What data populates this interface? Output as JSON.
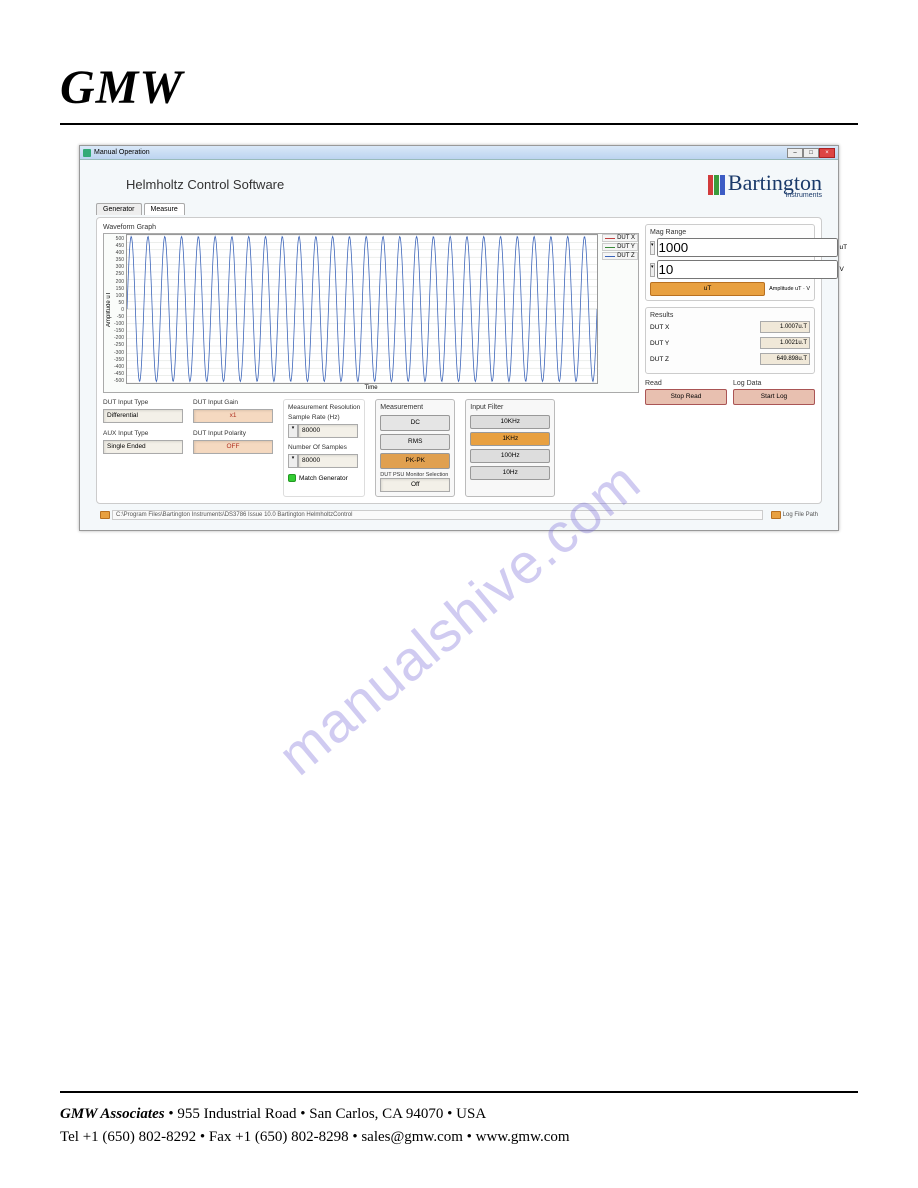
{
  "page": {
    "logo_text": "GMW",
    "watermark": "manualshive.com",
    "footer_line1_bold": "GMW Associates",
    "footer_line1_rest": "  •  955 Industrial Road  •  San Carlos, CA 94070  •  USA",
    "footer_line2": "Tel +1 (650) 802-8292  •  Fax +1 (650) 802-8298  •  sales@gmw.com  •  www.gmw.com"
  },
  "window": {
    "title": "Manual Operation",
    "app_title": "Helmholtz Control Software",
    "brand_text": "Bartington",
    "brand_sub": "Instruments",
    "brand_bar_colors": [
      "#d23c3c",
      "#3c9c3c",
      "#3c5cc4"
    ]
  },
  "tabs": [
    {
      "label": "Generator",
      "active": false
    },
    {
      "label": "Measure",
      "active": true
    }
  ],
  "graph": {
    "title": "Waveform Graph",
    "y_label": "Amplitude uT",
    "x_label": "Time",
    "y_ticks": [
      "500",
      "450",
      "400",
      "350",
      "300",
      "250",
      "200",
      "150",
      "100",
      "50",
      "0",
      "-50",
      "-100",
      "-150",
      "-200",
      "-250",
      "-300",
      "-350",
      "-400",
      "-450",
      "-500"
    ],
    "line_color": "#3a63b8",
    "grid_color": "#d8dcd8",
    "bg_color": "#ffffff",
    "n_cycles": 28,
    "ylim": [
      -500,
      500
    ],
    "legend": [
      {
        "label": "DUT X",
        "color": "#c04040"
      },
      {
        "label": "DUT Y",
        "color": "#3a8a3a"
      },
      {
        "label": "DUT Z",
        "color": "#3a63b8"
      }
    ]
  },
  "dut_input": {
    "label": "DUT Input Type",
    "value": "Differential"
  },
  "aux_input": {
    "label": "AUX Input Type",
    "value": "Single Ended"
  },
  "dut_gain": {
    "label": "DUT Input Gain",
    "value": "x1"
  },
  "dut_polarity": {
    "label": "DUT Input Polarity",
    "value": "OFF"
  },
  "meas_res": {
    "section": "Measurement Resolution",
    "sample_rate_label": "Sample Rate (Hz)",
    "sample_rate_value": "80000",
    "num_samples_label": "Number Of Samples",
    "num_samples_value": "80000",
    "match_gen_label": "Match Generator"
  },
  "measurement": {
    "label": "Measurement",
    "buttons": [
      {
        "label": "DC",
        "active": false
      },
      {
        "label": "RMS",
        "active": false
      },
      {
        "label": "PK-PK",
        "active": true
      }
    ],
    "psu_label": "DUT PSU Monitor Selection",
    "psu_value": "Off"
  },
  "mag_range": {
    "label": "Mag Range",
    "field1_value": "1000",
    "field1_unit": "uT",
    "field2_value": "10",
    "field2_unit": "V",
    "btn_label": "uT",
    "amp_label": "Amplitude uT · V"
  },
  "results": {
    "label": "Results",
    "rows": [
      {
        "name": "DUT X",
        "value": "1.0007u.T"
      },
      {
        "name": "DUT Y",
        "value": "1.0021u.T"
      },
      {
        "name": "DUT Z",
        "value": "649.898u.T"
      }
    ]
  },
  "read": {
    "label": "Read",
    "btn": "Stop Read"
  },
  "log": {
    "label": "Log Data",
    "btn": "Start Log"
  },
  "filter": {
    "label": "Input Filter",
    "buttons": [
      {
        "label": "10KHz",
        "active": false
      },
      {
        "label": "1KHz",
        "active": true
      },
      {
        "label": "100Hz",
        "active": false
      },
      {
        "label": "10Hz",
        "active": false
      }
    ]
  },
  "paths": {
    "config_path": "C:\\Program Files\\Bartington Instruments\\DS3786 Issue 10.0 Bartington HelmholtzControl",
    "log_label": "Log File Path"
  }
}
